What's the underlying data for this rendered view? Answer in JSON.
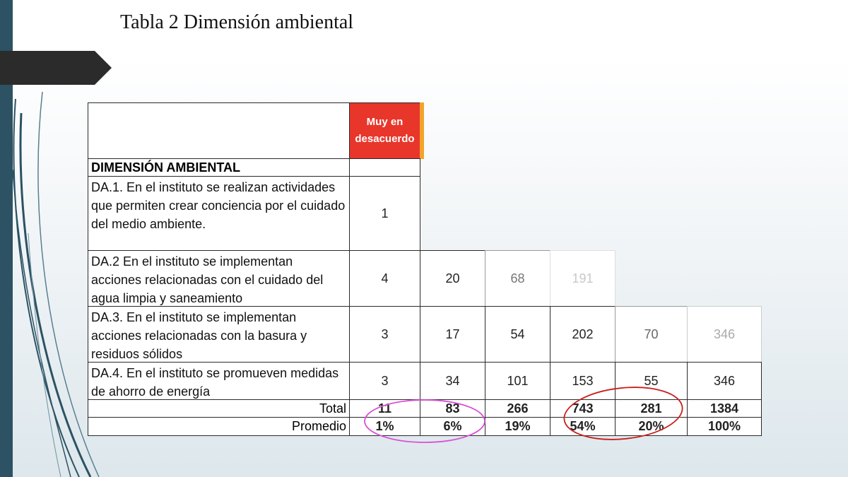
{
  "slide": {
    "title": "Tabla 2 Dimensión ambiental"
  },
  "table": {
    "header_col1": "Muy en desacuerdo",
    "section_heading": "DIMENSIÓN AMBIENTAL",
    "rows": [
      {
        "label": "DA.1. En el instituto se realizan actividades que permiten crear conciencia por el cuidado del medio ambiente.",
        "values": [
          "1"
        ]
      },
      {
        "label": "DA.2 En el instituto se implementan acciones relacionadas con el cuidado del agua limpia y saneamiento",
        "values": [
          "4",
          "20",
          "68",
          "191"
        ]
      },
      {
        "label": "DA.3. En el instituto se implementan acciones relacionadas con la basura y residuos sólidos",
        "values": [
          "3",
          "17",
          "54",
          "202",
          "70",
          "346"
        ]
      },
      {
        "label": "DA.4. En el instituto se promueven medidas de ahorro de energía",
        "values": [
          "3",
          "34",
          "101",
          "153",
          "55",
          "346"
        ]
      }
    ],
    "total": {
      "label": "Total",
      "values": [
        "11",
        "83",
        "266",
        "743",
        "281",
        "1384"
      ]
    },
    "average": {
      "label": "Promedio",
      "values": [
        "1%",
        "6%",
        "19%",
        "54%",
        "20%",
        "100%"
      ]
    }
  },
  "colors": {
    "header_red": "#e8362b",
    "circle_magenta": "#d94fd6",
    "circle_red": "#c8201b",
    "sidebar": "#2c5263"
  }
}
